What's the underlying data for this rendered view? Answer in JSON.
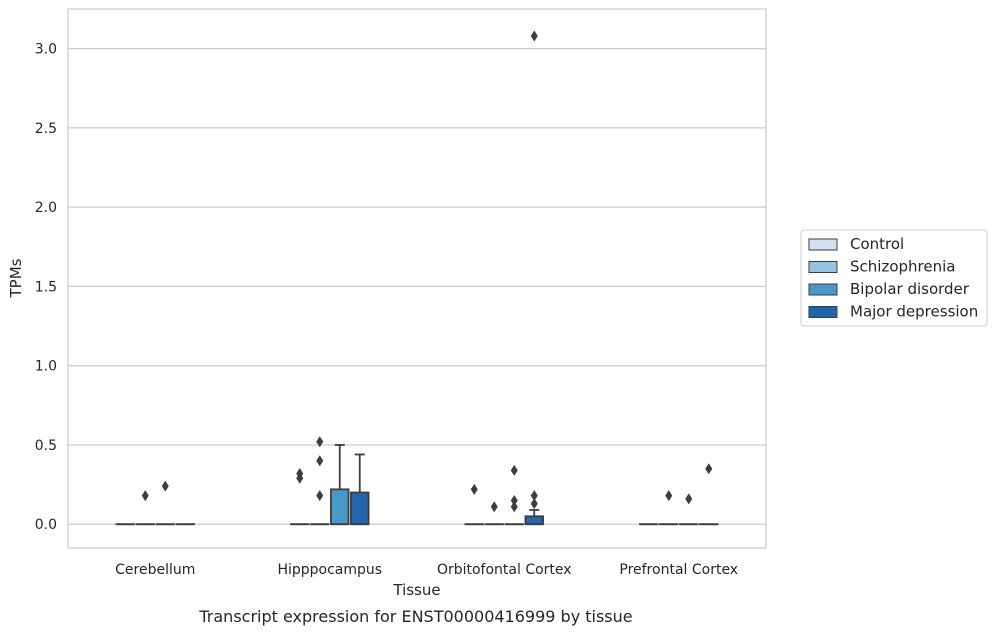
{
  "caption": "Transcript expression for ENST00000416999 by tissue",
  "chart_data": {
    "type": "box",
    "title": "",
    "xlabel": "Tissue",
    "ylabel": "TPMs",
    "ylim": [
      -0.15,
      3.25
    ],
    "yticks": [
      0.0,
      0.5,
      1.0,
      1.5,
      2.0,
      2.5,
      3.0
    ],
    "ytick_labels": [
      "0.0",
      "0.5",
      "1.0",
      "1.5",
      "2.0",
      "2.5",
      "3.0"
    ],
    "grid": "horizontal",
    "legend_position": "right",
    "categories": [
      "Cerebellum",
      "Hipppocampus",
      "Orbitofontal Cortex",
      "Prefrontal Cortex"
    ],
    "series": [
      {
        "name": "Control",
        "color": "#d0e1f2",
        "boxes": [
          {
            "q1": 0,
            "median": 0,
            "q3": 0,
            "whislo": 0,
            "whishi": 0,
            "fliers": []
          },
          {
            "q1": 0,
            "median": 0,
            "q3": 0,
            "whislo": 0,
            "whishi": 0,
            "fliers": [
              0.29,
              0.32
            ]
          },
          {
            "q1": 0,
            "median": 0,
            "q3": 0,
            "whislo": 0,
            "whishi": 0,
            "fliers": [
              0.22
            ]
          },
          {
            "q1": 0,
            "median": 0,
            "q3": 0,
            "whislo": 0,
            "whishi": 0,
            "fliers": []
          }
        ]
      },
      {
        "name": "Schizophrenia",
        "color": "#94c4df",
        "boxes": [
          {
            "q1": 0,
            "median": 0,
            "q3": 0,
            "whislo": 0,
            "whishi": 0,
            "fliers": [
              0.18
            ]
          },
          {
            "q1": 0,
            "median": 0,
            "q3": 0,
            "whislo": 0,
            "whishi": 0,
            "fliers": [
              0.18,
              0.4,
              0.52
            ]
          },
          {
            "q1": 0,
            "median": 0,
            "q3": 0,
            "whislo": 0,
            "whishi": 0,
            "fliers": [
              0.11
            ]
          },
          {
            "q1": 0,
            "median": 0,
            "q3": 0,
            "whislo": 0,
            "whishi": 0,
            "fliers": [
              0.18
            ]
          }
        ]
      },
      {
        "name": "Bipolar disorder",
        "color": "#4a98c9",
        "boxes": [
          {
            "q1": 0,
            "median": 0,
            "q3": 0,
            "whislo": 0,
            "whishi": 0,
            "fliers": [
              0.24
            ]
          },
          {
            "q1": 0,
            "median": 0,
            "q3": 0.22,
            "whislo": 0,
            "whishi": 0.5,
            "fliers": []
          },
          {
            "q1": 0,
            "median": 0,
            "q3": 0,
            "whislo": 0,
            "whishi": 0,
            "fliers": [
              0.11,
              0.15,
              0.34
            ]
          },
          {
            "q1": 0,
            "median": 0,
            "q3": 0,
            "whislo": 0,
            "whishi": 0,
            "fliers": [
              0.16
            ]
          }
        ]
      },
      {
        "name": "Major depression",
        "color": "#2166ac",
        "boxes": [
          {
            "q1": 0,
            "median": 0,
            "q3": 0,
            "whislo": 0,
            "whishi": 0,
            "fliers": []
          },
          {
            "q1": 0,
            "median": 0,
            "q3": 0.2,
            "whislo": 0,
            "whishi": 0.44,
            "fliers": []
          },
          {
            "q1": 0,
            "median": 0,
            "q3": 0.05,
            "whislo": 0,
            "whishi": 0.09,
            "fliers": [
              0.13,
              0.18,
              3.08
            ]
          },
          {
            "q1": 0,
            "median": 0,
            "q3": 0,
            "whislo": 0,
            "whishi": 0,
            "fliers": [
              0.35
            ]
          }
        ]
      }
    ]
  }
}
